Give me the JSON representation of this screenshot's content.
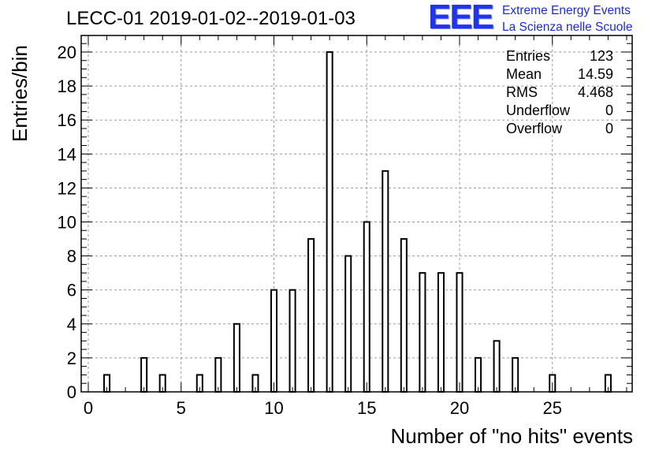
{
  "chart_data": {
    "type": "bar",
    "title": "LECC-01 2019-01-02--2019-01-03",
    "xlabel": "Number of \"no hits\" events",
    "ylabel": "Entries/bin",
    "xlim": [
      0,
      29.5
    ],
    "ylim": [
      0,
      21
    ],
    "bin_width": 0.3,
    "x_ticks": [
      0,
      5,
      10,
      15,
      20,
      25
    ],
    "y_ticks": [
      0,
      2,
      4,
      6,
      8,
      10,
      12,
      14,
      16,
      18,
      20
    ],
    "grid": true,
    "x": [
      1,
      3,
      4,
      6,
      7,
      8,
      9,
      10,
      11,
      12,
      13,
      14,
      15,
      16,
      17,
      18,
      19,
      20,
      21,
      22,
      23,
      25,
      28
    ],
    "values": [
      1,
      2,
      1,
      1,
      2,
      4,
      1,
      6,
      6,
      9,
      20,
      8,
      10,
      13,
      9,
      7,
      7,
      7,
      2,
      3,
      2,
      1,
      1
    ],
    "stats": {
      "entries_label": "Entries",
      "entries": "123",
      "mean_label": "Mean",
      "mean": "14.59",
      "rms_label": "RMS",
      "rms": "4.468",
      "underflow_label": "Underflow",
      "underflow": "0",
      "overflow_label": "Overflow",
      "overflow": "0"
    }
  },
  "logo": {
    "mark": "EEE",
    "line1": "Extreme Energy Events",
    "line2": "La Scienza nelle Scuole",
    "color": "#2233ee"
  }
}
